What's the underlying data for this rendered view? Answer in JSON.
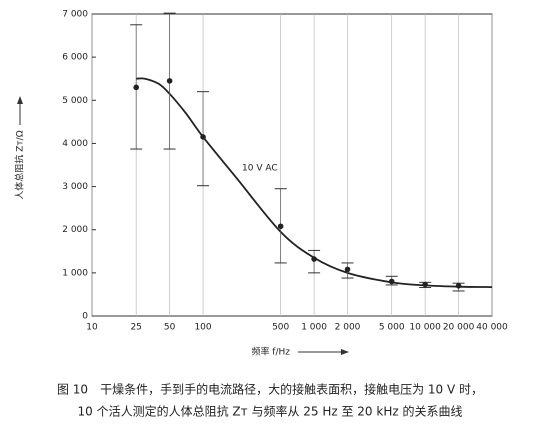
{
  "chart_data": {
    "type": "scatter",
    "caption": [
      "图 10　干燥条件，手到手的电流路径，大的接触表面积，接触电压为 10 V 时，",
      "10 个活人测定的人体总阻抗 Zᴛ 与频率从 25 Hz 至 20 kHz 的关系曲线"
    ],
    "x_label": "频率 f/Hz",
    "y_label": "人体总阻抗 Zᴛ/Ω",
    "x": [
      25,
      50,
      100,
      500,
      1000,
      2000,
      5000,
      10000,
      20000
    ],
    "values": [
      5300,
      5450,
      4150,
      2080,
      1320,
      1080,
      800,
      730,
      700
    ],
    "error_low": [
      3870,
      3870,
      3020,
      1230,
      1000,
      880,
      720,
      660,
      580
    ],
    "error_high": [
      6750,
      7020,
      5200,
      2950,
      1520,
      1230,
      920,
      780,
      760
    ],
    "color": "#222222",
    "curve": {
      "label": "10 V AC",
      "color": "#222222",
      "x": [
        25,
        30,
        40,
        50,
        70,
        100,
        200,
        500,
        1000,
        2000,
        5000,
        10000,
        20000,
        40000
      ],
      "values": [
        5500,
        5500,
        5380,
        5150,
        4700,
        4150,
        3200,
        1950,
        1350,
        1000,
        780,
        710,
        680,
        670
      ]
    },
    "x_log": true,
    "xlim": [
      10,
      40000
    ],
    "xticks": [
      10,
      25,
      50,
      100,
      500,
      {
        "value": 1000,
        "label": "1 000"
      },
      {
        "value": 2000,
        "label": "2 000"
      },
      {
        "value": 5000,
        "label": "5 000"
      },
      {
        "value": 10000,
        "label": "10 000"
      },
      {
        "value": 20000,
        "label": "20 000"
      },
      {
        "value": 40000,
        "label": "40 000"
      }
    ],
    "ylim": [
      0,
      7000
    ],
    "yticks": [
      0,
      {
        "value": 1000,
        "label": "1 000"
      },
      {
        "value": 2000,
        "label": "2 000"
      },
      {
        "value": 3000,
        "label": "3 000"
      },
      {
        "value": 4000,
        "label": "4 000"
      },
      {
        "value": 5000,
        "label": "5 000"
      },
      {
        "value": 6000,
        "label": "6 000"
      },
      {
        "value": 7000,
        "label": "7 000"
      }
    ],
    "grid": "x"
  }
}
